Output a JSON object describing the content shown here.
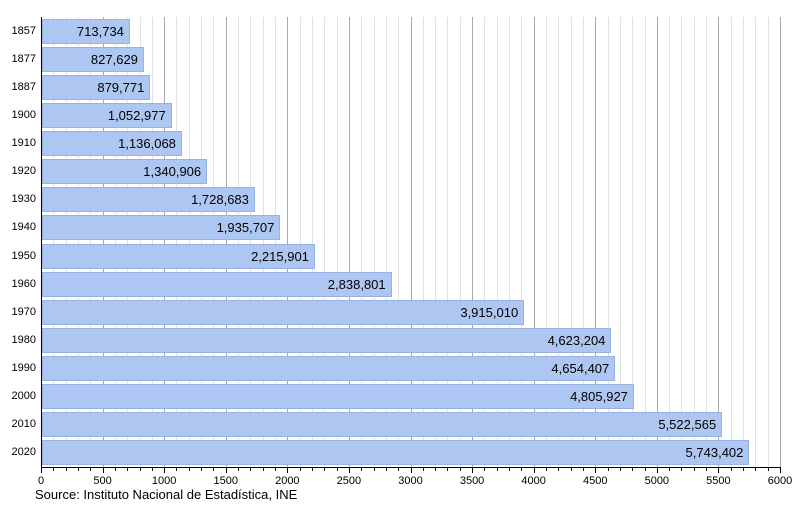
{
  "chart_data": {
    "type": "bar",
    "orientation": "horizontal",
    "title": "",
    "xlabel": "",
    "ylabel": "",
    "categories": [
      "1857",
      "1877",
      "1887",
      "1900",
      "1910",
      "1920",
      "1930",
      "1940",
      "1950",
      "1960",
      "1970",
      "1980",
      "1990",
      "2000",
      "2010",
      "2020"
    ],
    "values": [
      713734,
      827629,
      879771,
      1052977,
      1136068,
      1340906,
      1728683,
      1935707,
      2215901,
      2838801,
      3915010,
      4623204,
      4654407,
      4805927,
      5522565,
      5743402
    ],
    "value_labels": [
      "713,734",
      "827,629",
      "879,771",
      "1,052,977",
      "1,136,068",
      "1,340,906",
      "1,728,683",
      "1,935,707",
      "2,215,901",
      "2,838,801",
      "3,915,010",
      "4,623,204",
      "4,654,407",
      "4,805,927",
      "5,522,565",
      "5,743,402"
    ],
    "x_axis_scale": "thousands",
    "xlim": [
      0,
      6000
    ],
    "x_major_step": 500,
    "x_minor_step": 100,
    "x_tick_labels": [
      "0",
      "500",
      "1000",
      "1500",
      "2000",
      "2500",
      "3000",
      "3500",
      "4000",
      "4500",
      "5000",
      "5500",
      "6000"
    ],
    "grid": "vertical major and minor gridlines",
    "legend": "none",
    "colors": {
      "bar_fill": "#aec7f2",
      "bar_border": "#9ab2e2",
      "grid_major": "#a8a8a8",
      "grid_minor": "#e2e2e2",
      "axis": "#000000",
      "text": "#000000"
    }
  },
  "source": {
    "caption": "Source: Instituto Nacional de Estadística, INE"
  }
}
